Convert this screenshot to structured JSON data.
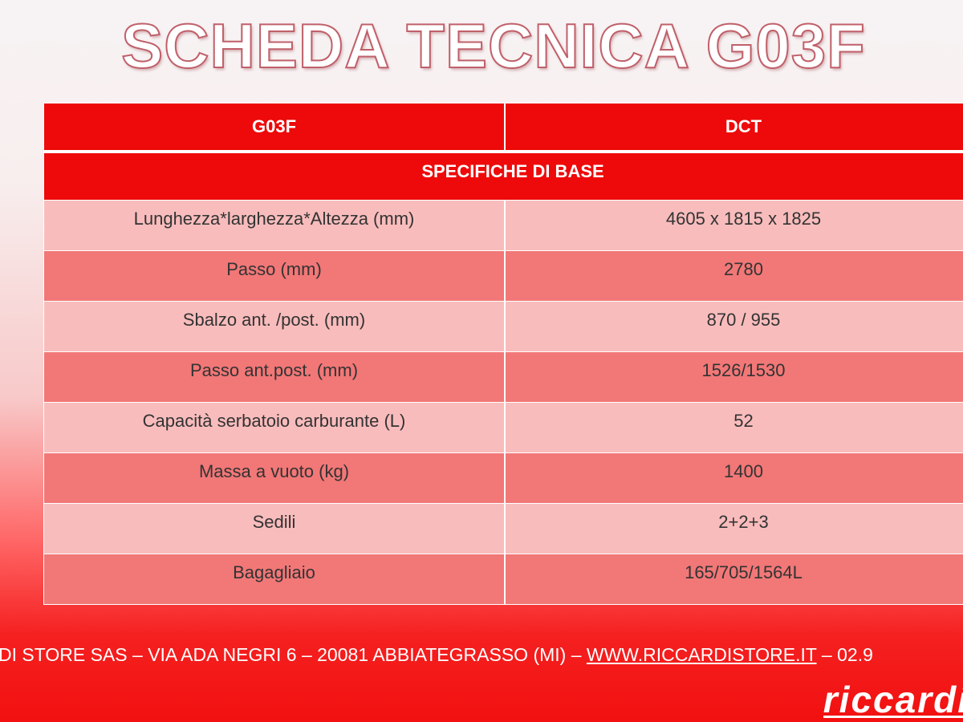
{
  "title": "SCHEDA TECNICA G03F",
  "table": {
    "header": [
      "G03F",
      "DCT"
    ],
    "section": "SPECIFICHE DI BASE",
    "rows": [
      [
        "Lunghezza*larghezza*Altezza (mm)",
        "4605 x 1815 x 1825"
      ],
      [
        "Passo (mm)",
        "2780"
      ],
      [
        "Sbalzo ant. /post. (mm)",
        "870 / 955"
      ],
      [
        "Passo ant.post. (mm)",
        "1526/1530"
      ],
      [
        "Capacità serbatoio carburante (L)",
        "52"
      ],
      [
        "Massa a vuoto (kg)",
        "1400"
      ],
      [
        "Sedili",
        "2+2+3"
      ],
      [
        "Bagagliaio",
        "165/705/1564L"
      ]
    ]
  },
  "footer": {
    "before": "DI STORE SAS – VIA ADA NEGRI 6 – 20081 ABBIATEGRASSO (MI) – ",
    "link": "WWW.RICCARDISTORE.IT",
    "after": " – 02.9"
  },
  "logo": "riccardi"
}
